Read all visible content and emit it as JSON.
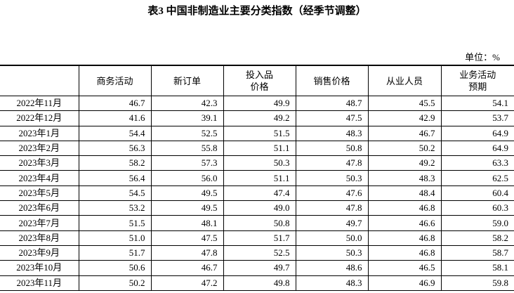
{
  "title": "表3 中国非制造业主要分类指数（经季节调整）",
  "unit": "单位：%",
  "table": {
    "header": [
      "",
      "商务活动",
      "新订单",
      "投入品\n价格",
      "销售价格",
      "从业人员",
      "业务活动\n预期"
    ],
    "rows": [
      [
        "2022年11月",
        "46.7",
        "42.3",
        "49.9",
        "48.7",
        "45.5",
        "54.1"
      ],
      [
        "2022年12月",
        "41.6",
        "39.1",
        "49.2",
        "47.5",
        "42.9",
        "53.7"
      ],
      [
        "2023年1月",
        "54.4",
        "52.5",
        "51.5",
        "48.3",
        "46.7",
        "64.9"
      ],
      [
        "2023年2月",
        "56.3",
        "55.8",
        "51.1",
        "50.8",
        "50.2",
        "64.9"
      ],
      [
        "2023年3月",
        "58.2",
        "57.3",
        "50.3",
        "47.8",
        "49.2",
        "63.3"
      ],
      [
        "2023年4月",
        "56.4",
        "56.0",
        "51.1",
        "50.3",
        "48.3",
        "62.5"
      ],
      [
        "2023年5月",
        "54.5",
        "49.5",
        "47.4",
        "47.6",
        "48.4",
        "60.4"
      ],
      [
        "2023年6月",
        "53.2",
        "49.5",
        "49.0",
        "47.8",
        "46.8",
        "60.3"
      ],
      [
        "2023年7月",
        "51.5",
        "48.1",
        "50.8",
        "49.7",
        "46.6",
        "59.0"
      ],
      [
        "2023年8月",
        "51.0",
        "47.5",
        "51.7",
        "50.0",
        "46.8",
        "58.2"
      ],
      [
        "2023年9月",
        "51.7",
        "47.8",
        "52.5",
        "50.3",
        "46.8",
        "58.7"
      ],
      [
        "2023年10月",
        "50.6",
        "46.7",
        "49.7",
        "48.6",
        "46.5",
        "58.1"
      ],
      [
        "2023年11月",
        "50.2",
        "47.2",
        "49.8",
        "48.3",
        "46.9",
        "59.8"
      ]
    ]
  }
}
